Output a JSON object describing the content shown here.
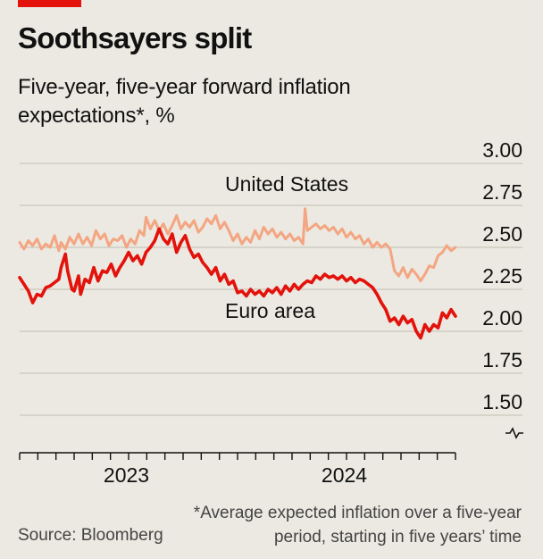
{
  "brand": {
    "accent_color": "#e3120b"
  },
  "header": {
    "title": "Soothsayers split",
    "subtitle": "Five-year, five-year forward inflation expectations*, %"
  },
  "footer": {
    "source": "Source: Bloomberg",
    "footnote": "*Average expected inflation over a five-year period, starting in five years’ time"
  },
  "chart_data": {
    "type": "line",
    "title": "Soothsayers split",
    "subtitle": "Five-year, five-year forward inflation expectations*, %",
    "xlabel": "",
    "ylabel": "%",
    "ylim": [
      1.5,
      3.0
    ],
    "yticks": [
      "3.00",
      "2.75",
      "2.50",
      "2.25",
      "2.00",
      "1.75",
      "1.50"
    ],
    "ytick_values": [
      3.0,
      2.75,
      2.5,
      2.25,
      2.0,
      1.75,
      1.5
    ],
    "axis_break": true,
    "xticks": [
      {
        "label": "2023",
        "t": 2023.0
      },
      {
        "label": "2024",
        "t": 2024.0
      }
    ],
    "xlim": [
      2022.42,
      2024.42
    ],
    "grid": true,
    "series": [
      {
        "name": "United States",
        "color": "#f4a582",
        "points": [
          [
            2022.42,
            2.53
          ],
          [
            2022.44,
            2.49
          ],
          [
            2022.46,
            2.54
          ],
          [
            2022.48,
            2.51
          ],
          [
            2022.5,
            2.55
          ],
          [
            2022.52,
            2.49
          ],
          [
            2022.54,
            2.52
          ],
          [
            2022.56,
            2.5
          ],
          [
            2022.58,
            2.57
          ],
          [
            2022.6,
            2.48
          ],
          [
            2022.61,
            2.53
          ],
          [
            2022.63,
            2.49
          ],
          [
            2022.65,
            2.56
          ],
          [
            2022.67,
            2.52
          ],
          [
            2022.69,
            2.58
          ],
          [
            2022.71,
            2.52
          ],
          [
            2022.73,
            2.56
          ],
          [
            2022.75,
            2.51
          ],
          [
            2022.77,
            2.6
          ],
          [
            2022.79,
            2.55
          ],
          [
            2022.81,
            2.58
          ],
          [
            2022.83,
            2.51
          ],
          [
            2022.85,
            2.55
          ],
          [
            2022.87,
            2.54
          ],
          [
            2022.89,
            2.57
          ],
          [
            2022.91,
            2.5
          ],
          [
            2022.93,
            2.55
          ],
          [
            2022.95,
            2.52
          ],
          [
            2022.97,
            2.6
          ],
          [
            2022.99,
            2.57
          ],
          [
            2023.0,
            2.68
          ],
          [
            2023.02,
            2.61
          ],
          [
            2023.04,
            2.66
          ],
          [
            2023.06,
            2.6
          ],
          [
            2023.08,
            2.64
          ],
          [
            2023.1,
            2.58
          ],
          [
            2023.12,
            2.63
          ],
          [
            2023.14,
            2.69
          ],
          [
            2023.16,
            2.61
          ],
          [
            2023.18,
            2.65
          ],
          [
            2023.2,
            2.62
          ],
          [
            2023.22,
            2.66
          ],
          [
            2023.24,
            2.59
          ],
          [
            2023.26,
            2.62
          ],
          [
            2023.28,
            2.67
          ],
          [
            2023.3,
            2.64
          ],
          [
            2023.32,
            2.69
          ],
          [
            2023.34,
            2.61
          ],
          [
            2023.36,
            2.65
          ],
          [
            2023.38,
            2.6
          ],
          [
            2023.4,
            2.54
          ],
          [
            2023.42,
            2.58
          ],
          [
            2023.44,
            2.52
          ],
          [
            2023.46,
            2.56
          ],
          [
            2023.48,
            2.53
          ],
          [
            2023.5,
            2.6
          ],
          [
            2023.52,
            2.55
          ],
          [
            2023.54,
            2.62
          ],
          [
            2023.56,
            2.58
          ],
          [
            2023.58,
            2.61
          ],
          [
            2023.6,
            2.56
          ],
          [
            2023.62,
            2.59
          ],
          [
            2023.64,
            2.55
          ],
          [
            2023.66,
            2.58
          ],
          [
            2023.68,
            2.54
          ],
          [
            2023.7,
            2.56
          ],
          [
            2023.72,
            2.52
          ],
          [
            2023.73,
            2.73
          ],
          [
            2023.74,
            2.6
          ],
          [
            2023.76,
            2.62
          ],
          [
            2023.78,
            2.64
          ],
          [
            2023.8,
            2.61
          ],
          [
            2023.82,
            2.63
          ],
          [
            2023.84,
            2.6
          ],
          [
            2023.86,
            2.62
          ],
          [
            2023.88,
            2.58
          ],
          [
            2023.9,
            2.61
          ],
          [
            2023.92,
            2.56
          ],
          [
            2023.94,
            2.59
          ],
          [
            2023.96,
            2.55
          ],
          [
            2023.98,
            2.57
          ],
          [
            2024.0,
            2.52
          ],
          [
            2024.02,
            2.55
          ],
          [
            2024.04,
            2.5
          ],
          [
            2024.06,
            2.53
          ],
          [
            2024.08,
            2.5
          ],
          [
            2024.1,
            2.52
          ],
          [
            2024.12,
            2.49
          ],
          [
            2024.14,
            2.36
          ],
          [
            2024.16,
            2.33
          ],
          [
            2024.18,
            2.38
          ],
          [
            2024.2,
            2.32
          ],
          [
            2024.22,
            2.37
          ],
          [
            2024.24,
            2.34
          ],
          [
            2024.26,
            2.3
          ],
          [
            2024.28,
            2.34
          ],
          [
            2024.3,
            2.39
          ],
          [
            2024.32,
            2.38
          ],
          [
            2024.34,
            2.45
          ],
          [
            2024.36,
            2.47
          ],
          [
            2024.38,
            2.51
          ],
          [
            2024.4,
            2.48
          ],
          [
            2024.42,
            2.5
          ]
        ]
      },
      {
        "name": "Euro area",
        "color": "#e3120b",
        "points": [
          [
            2022.42,
            2.32
          ],
          [
            2022.44,
            2.28
          ],
          [
            2022.46,
            2.24
          ],
          [
            2022.48,
            2.17
          ],
          [
            2022.5,
            2.22
          ],
          [
            2022.52,
            2.21
          ],
          [
            2022.54,
            2.26
          ],
          [
            2022.56,
            2.27
          ],
          [
            2022.58,
            2.29
          ],
          [
            2022.6,
            2.31
          ],
          [
            2022.61,
            2.38
          ],
          [
            2022.63,
            2.46
          ],
          [
            2022.64,
            2.36
          ],
          [
            2022.66,
            2.25
          ],
          [
            2022.67,
            2.24
          ],
          [
            2022.69,
            2.33
          ],
          [
            2022.7,
            2.22
          ],
          [
            2022.72,
            2.31
          ],
          [
            2022.74,
            2.29
          ],
          [
            2022.76,
            2.38
          ],
          [
            2022.78,
            2.3
          ],
          [
            2022.8,
            2.36
          ],
          [
            2022.82,
            2.35
          ],
          [
            2022.84,
            2.4
          ],
          [
            2022.86,
            2.33
          ],
          [
            2022.88,
            2.38
          ],
          [
            2022.9,
            2.42
          ],
          [
            2022.92,
            2.47
          ],
          [
            2022.94,
            2.42
          ],
          [
            2022.96,
            2.45
          ],
          [
            2022.98,
            2.4
          ],
          [
            2023.0,
            2.47
          ],
          [
            2023.02,
            2.5
          ],
          [
            2023.04,
            2.54
          ],
          [
            2023.06,
            2.61
          ],
          [
            2023.08,
            2.55
          ],
          [
            2023.1,
            2.52
          ],
          [
            2023.12,
            2.58
          ],
          [
            2023.14,
            2.47
          ],
          [
            2023.16,
            2.53
          ],
          [
            2023.18,
            2.57
          ],
          [
            2023.2,
            2.49
          ],
          [
            2023.22,
            2.44
          ],
          [
            2023.24,
            2.46
          ],
          [
            2023.26,
            2.41
          ],
          [
            2023.28,
            2.38
          ],
          [
            2023.3,
            2.34
          ],
          [
            2023.32,
            2.38
          ],
          [
            2023.34,
            2.3
          ],
          [
            2023.36,
            2.34
          ],
          [
            2023.38,
            2.28
          ],
          [
            2023.4,
            2.3
          ],
          [
            2023.42,
            2.23
          ],
          [
            2023.44,
            2.24
          ],
          [
            2023.46,
            2.21
          ],
          [
            2023.48,
            2.25
          ],
          [
            2023.5,
            2.22
          ],
          [
            2023.52,
            2.24
          ],
          [
            2023.54,
            2.21
          ],
          [
            2023.56,
            2.25
          ],
          [
            2023.58,
            2.23
          ],
          [
            2023.6,
            2.26
          ],
          [
            2023.62,
            2.22
          ],
          [
            2023.64,
            2.27
          ],
          [
            2023.66,
            2.24
          ],
          [
            2023.68,
            2.28
          ],
          [
            2023.7,
            2.25
          ],
          [
            2023.72,
            2.28
          ],
          [
            2023.74,
            2.3
          ],
          [
            2023.76,
            2.29
          ],
          [
            2023.78,
            2.33
          ],
          [
            2023.8,
            2.31
          ],
          [
            2023.82,
            2.34
          ],
          [
            2023.84,
            2.32
          ],
          [
            2023.86,
            2.33
          ],
          [
            2023.88,
            2.31
          ],
          [
            2023.9,
            2.33
          ],
          [
            2023.92,
            2.3
          ],
          [
            2023.94,
            2.32
          ],
          [
            2023.96,
            2.29
          ],
          [
            2023.98,
            2.31
          ],
          [
            2024.0,
            2.3
          ],
          [
            2024.02,
            2.28
          ],
          [
            2024.04,
            2.26
          ],
          [
            2024.06,
            2.22
          ],
          [
            2024.08,
            2.17
          ],
          [
            2024.1,
            2.13
          ],
          [
            2024.12,
            2.06
          ],
          [
            2024.14,
            2.08
          ],
          [
            2024.16,
            2.04
          ],
          [
            2024.18,
            2.09
          ],
          [
            2024.2,
            2.05
          ],
          [
            2024.22,
            2.07
          ],
          [
            2024.24,
            2.0
          ],
          [
            2024.26,
            1.96
          ],
          [
            2024.28,
            2.04
          ],
          [
            2024.3,
            2.0
          ],
          [
            2024.32,
            2.04
          ],
          [
            2024.34,
            2.02
          ],
          [
            2024.36,
            2.11
          ],
          [
            2024.38,
            2.08
          ],
          [
            2024.4,
            2.13
          ],
          [
            2024.42,
            2.09
          ]
        ]
      }
    ],
    "annotations": [
      {
        "text": "United States",
        "series": "United States"
      },
      {
        "text": "Euro area",
        "series": "Euro area"
      }
    ]
  }
}
